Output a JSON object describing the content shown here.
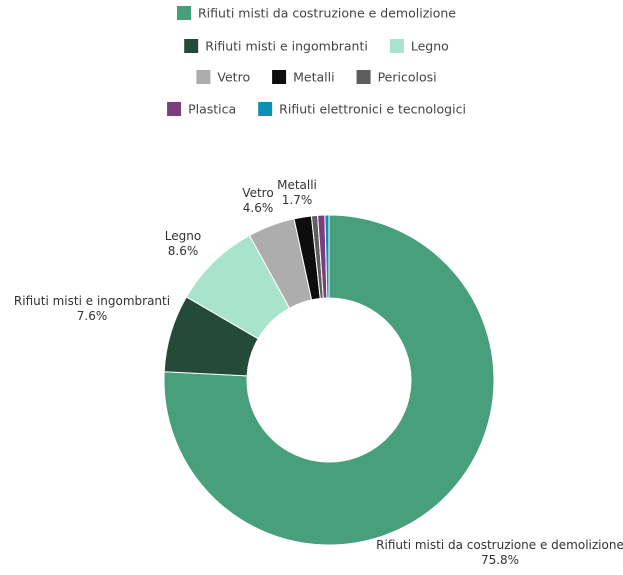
{
  "chart_data": {
    "type": "pie",
    "variant": "donut",
    "legend_position": "top",
    "legend": [
      [
        "Rifiuti misti da costruzione e demolizione"
      ],
      [
        "Rifiuti misti e ingombranti",
        "Legno"
      ],
      [
        "Vetro",
        "Metalli",
        "Pericolosi"
      ],
      [
        "Plastica",
        "Rifiuti elettronici e tecnologici"
      ]
    ],
    "series": [
      {
        "name": "Rifiuti misti da costruzione e demolizione",
        "value": 75.8,
        "label": "Rifiuti misti da costruzione e demolizione",
        "value_label": "75.8%",
        "color": "#47a07b"
      },
      {
        "name": "Rifiuti misti e ingombranti",
        "value": 7.6,
        "label": "Rifiuti misti e ingombranti",
        "value_label": "7.6%",
        "color": "#244a3a"
      },
      {
        "name": "Legno",
        "value": 8.6,
        "label": "Legno",
        "value_label": "8.6%",
        "color": "#a8e3cc"
      },
      {
        "name": "Vetro",
        "value": 4.6,
        "label": "Vetro",
        "value_label": "4.6%",
        "color": "#adadad"
      },
      {
        "name": "Metalli",
        "value": 1.7,
        "label": "Metalli",
        "value_label": "1.7%",
        "color": "#0d0d0d"
      },
      {
        "name": "Pericolosi",
        "value": 0.6,
        "label": "",
        "value_label": "",
        "color": "#5e5e5e"
      },
      {
        "name": "Plastica",
        "value": 0.7,
        "label": "",
        "value_label": "",
        "color": "#7b3d7e"
      },
      {
        "name": "Rifiuti elettronici e tecnologici",
        "value": 0.4,
        "label": "",
        "value_label": "",
        "color": "#0e8fb5"
      }
    ]
  }
}
